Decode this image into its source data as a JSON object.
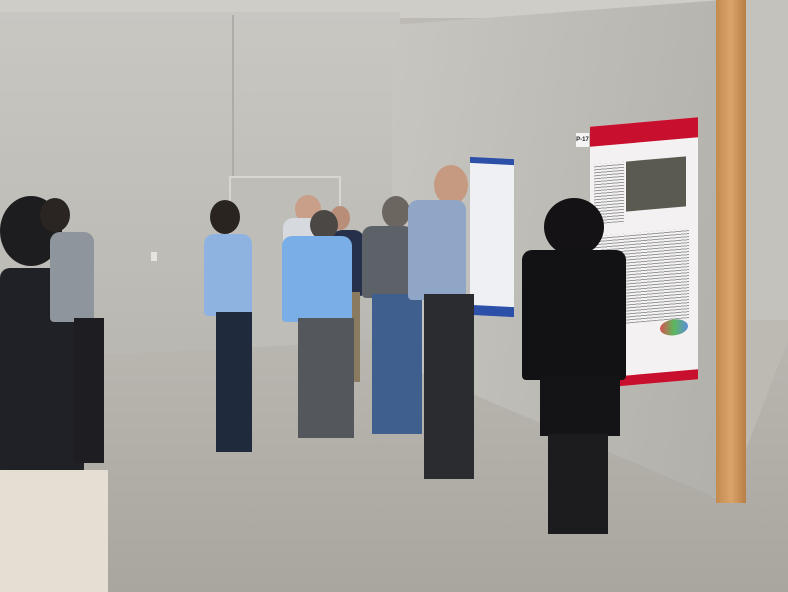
{
  "scene": {
    "poster_label": "P-17",
    "colors": {
      "poster_red": "#c8102e",
      "poster_blue": "#2c4fa8",
      "wood_pillar": "#d9a46a",
      "wall": "#c8c6c0",
      "carpet": "#b0ada6"
    }
  }
}
